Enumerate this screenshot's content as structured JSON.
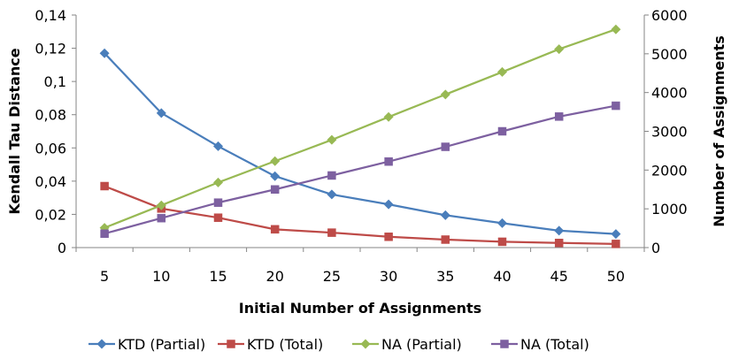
{
  "chart_data": {
    "type": "line",
    "title": "",
    "xlabel": "Initial Number of Assignments",
    "ylabel_left": "Kendall Tau Distance",
    "ylabel_right": "Number of Assignments",
    "categories": [
      "5",
      "10",
      "15",
      "20",
      "25",
      "30",
      "35",
      "40",
      "45",
      "50"
    ],
    "ylim_left": [
      0,
      0.14
    ],
    "ylim_right": [
      0,
      6000
    ],
    "yticks_left": [
      "0",
      "0,02",
      "0,04",
      "0,06",
      "0,08",
      "0,1",
      "0,12",
      "0,14"
    ],
    "yticks_right": [
      "0",
      "1000",
      "2000",
      "3000",
      "4000",
      "5000",
      "6000"
    ],
    "grid": false,
    "legend_position": "bottom",
    "series": [
      {
        "name": "KTD (Partial)",
        "axis": "left",
        "color": "#4a7ebb",
        "marker": "diamond",
        "values": [
          0.117,
          0.081,
          0.061,
          0.043,
          0.032,
          0.026,
          0.0195,
          0.0147,
          0.0102,
          0.0082
        ]
      },
      {
        "name": "KTD (Total)",
        "axis": "left",
        "color": "#be4b48",
        "marker": "square",
        "values": [
          0.037,
          0.0235,
          0.018,
          0.011,
          0.009,
          0.0065,
          0.0048,
          0.0035,
          0.0028,
          0.0022
        ]
      },
      {
        "name": "NA (Partial)",
        "axis": "right",
        "color": "#98b954",
        "marker": "diamond",
        "values": [
          510,
          1090,
          1680,
          2230,
          2780,
          3370,
          3950,
          4530,
          5120,
          5630
        ]
      },
      {
        "name": "NA (Total)",
        "axis": "right",
        "color": "#7d60a0",
        "marker": "square",
        "values": [
          360,
          760,
          1160,
          1500,
          1860,
          2220,
          2600,
          3000,
          3380,
          3660
        ]
      }
    ]
  }
}
